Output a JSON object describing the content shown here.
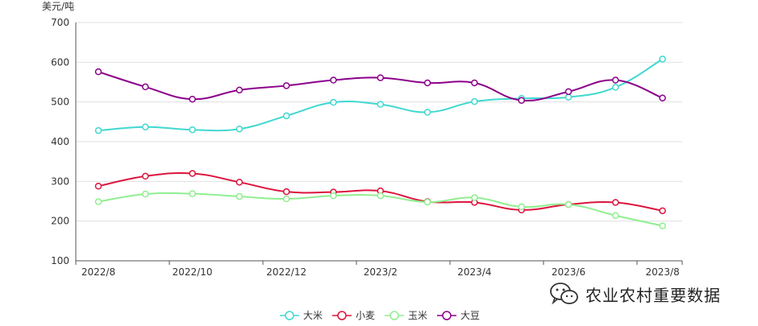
{
  "chart_data": {
    "type": "line",
    "title": "",
    "xlabel": "",
    "ylabel": "美元/吨",
    "ylim": [
      100,
      700
    ],
    "yticks": [
      100,
      200,
      300,
      400,
      500,
      600,
      700
    ],
    "x": [
      "2022/8",
      "2022/9",
      "2022/10",
      "2022/11",
      "2022/12",
      "2023/1",
      "2023/2",
      "2023/3",
      "2023/4",
      "2023/5",
      "2023/6",
      "2023/7",
      "2023/8"
    ],
    "xtick_labels": [
      "2022/8",
      "2022/10",
      "2022/12",
      "2023/2",
      "2023/4",
      "2023/6",
      "2023/8"
    ],
    "grid": true,
    "legend_position": "bottom-center",
    "series": [
      {
        "name": "大米",
        "color": "#40d8d0",
        "values": [
          428,
          437,
          430,
          432,
          465,
          499,
          494,
          474,
          501,
          509,
          512,
          537,
          608
        ]
      },
      {
        "name": "小麦",
        "color": "#dc143c",
        "values": [
          288,
          313,
          320,
          298,
          274,
          273,
          276,
          249,
          247,
          228,
          242,
          247,
          226
        ]
      },
      {
        "name": "玉米",
        "color": "#90ee90",
        "values": [
          249,
          268,
          269,
          262,
          256,
          264,
          264,
          248,
          259,
          236,
          242,
          214,
          188
        ]
      },
      {
        "name": "大豆",
        "color": "#8b008b",
        "values": [
          576,
          538,
          507,
          530,
          541,
          555,
          561,
          548,
          548,
          504,
          526,
          555,
          510
        ]
      }
    ]
  },
  "watermark": {
    "text": "农业农村重要数据",
    "icon": "wechat-icon"
  }
}
